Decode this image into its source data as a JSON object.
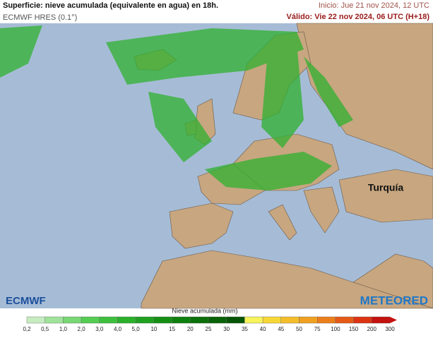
{
  "header": {
    "title": "Superficie: nieve acumulada (equivalente en agua) en 18h.",
    "model": "ECMWF HRES (0.1°)",
    "init": "Inicio: Jue 21 nov 2024, 12 UTC",
    "valid": "Válido: Vie 22 nov 2024, 06 UTC (H+18)"
  },
  "map": {
    "label": "Turquía",
    "logo_left": "ECMWF",
    "logo_right": "METEORED"
  },
  "legend": {
    "title": "Nieve acumulada (mm)",
    "labels": [
      "0,2",
      "0,5",
      "1,0",
      "2,0",
      "3,0",
      "4,0",
      "5,0",
      "10",
      "15",
      "20",
      "25",
      "30",
      "35",
      "40",
      "45",
      "50",
      "75",
      "100",
      "150",
      "200",
      "300"
    ],
    "colors": [
      "#c6ecc0",
      "#9fe29a",
      "#78d873",
      "#55cc52",
      "#3dbf3d",
      "#2bb02b",
      "#1fa01f",
      "#159015",
      "#0e800e",
      "#0a700a",
      "#086208",
      "#065406",
      "#f7f35a",
      "#f6d835",
      "#f4be2a",
      "#f0a020",
      "#ec7e1a",
      "#e65a16",
      "#dc3412",
      "#c4120e"
    ]
  }
}
